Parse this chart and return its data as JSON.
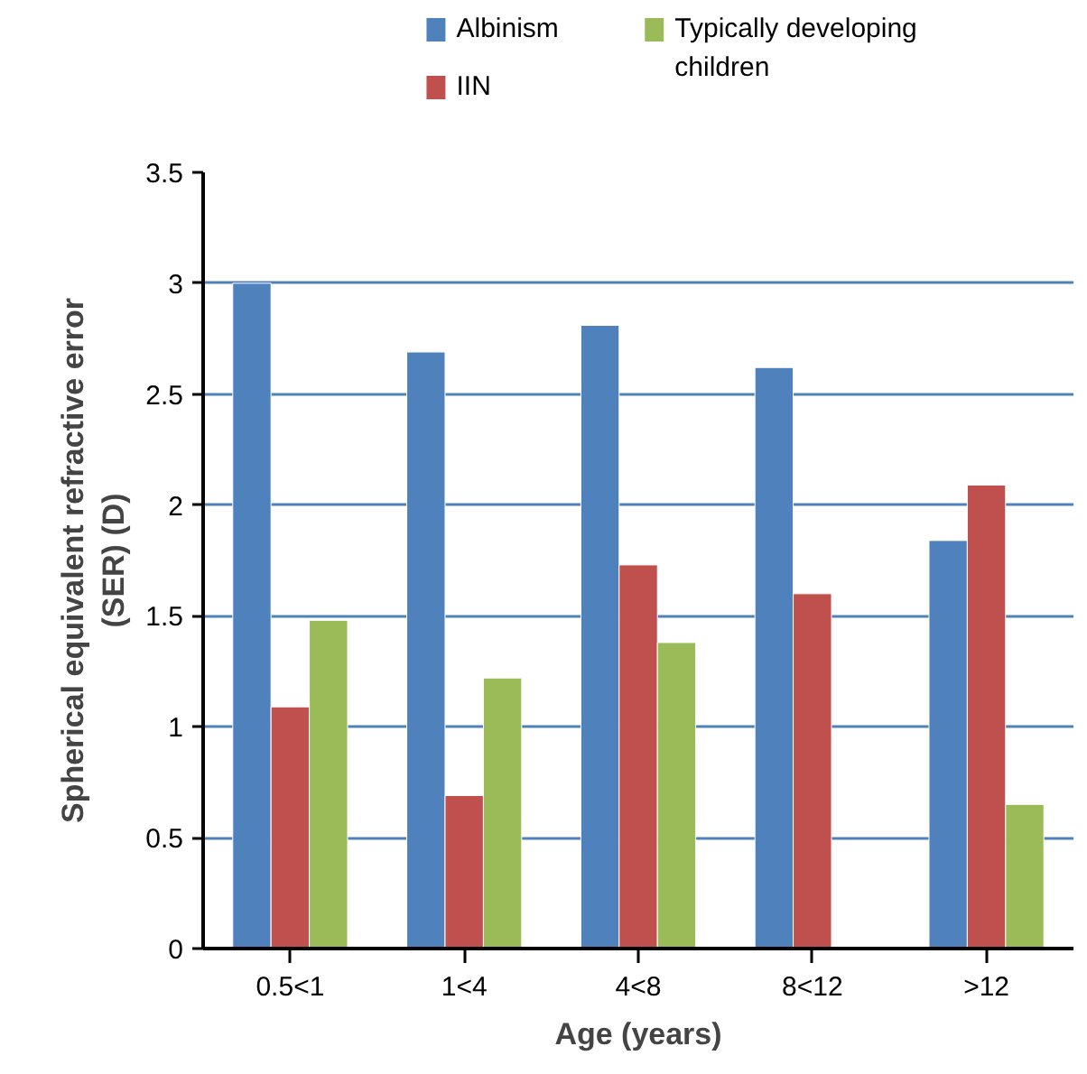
{
  "chart_data": {
    "type": "bar",
    "xlabel": "Age (years)",
    "ylabel": "Spherical equivalent refractive error (SER) (D)",
    "categories": [
      "0.5<1",
      "1<4",
      "4<8",
      "8<12",
      ">12"
    ],
    "series": [
      {
        "name": "Albinism",
        "color": "#4f81bd",
        "values": [
          3.0,
          2.69,
          2.81,
          2.62,
          1.84
        ]
      },
      {
        "name": "IIN",
        "color": "#c0504d",
        "values": [
          1.09,
          0.69,
          1.73,
          1.6,
          2.09
        ]
      },
      {
        "name": "Typically developing children",
        "color": "#9bbb59",
        "values": [
          1.48,
          1.22,
          1.38,
          null,
          0.65
        ]
      }
    ],
    "ylim": [
      0,
      3.5
    ],
    "yticks": [
      0,
      0.5,
      1,
      1.5,
      2,
      2.5,
      3,
      3.5
    ],
    "grid": "y",
    "legend": "top"
  }
}
